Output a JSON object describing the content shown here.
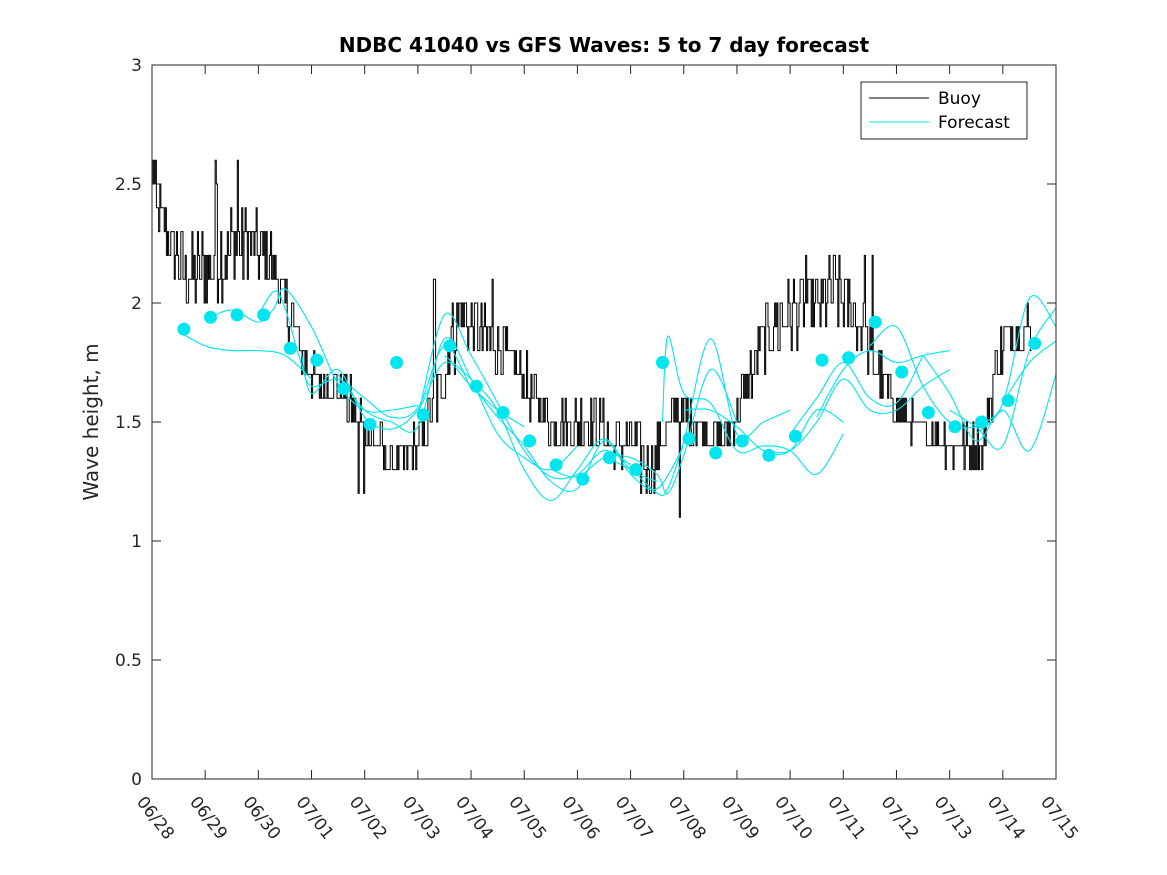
{
  "chart_data": {
    "type": "line",
    "title": "NDBC 41040 vs GFS Waves: 5 to 7 day forecast",
    "ylabel": "Wave height, m",
    "xlabel": "",
    "ylim": [
      0,
      3
    ],
    "xlim": [
      0,
      17
    ],
    "yticks": [
      0,
      0.5,
      1,
      1.5,
      2,
      2.5,
      3
    ],
    "ytick_labels": [
      "0",
      "0.5",
      "1",
      "1.5",
      "2",
      "2.5",
      "3"
    ],
    "xtick_labels": [
      "06/28",
      "06/29",
      "06/30",
      "07/01",
      "07/02",
      "07/03",
      "07/04",
      "07/05",
      "07/06",
      "07/07",
      "07/08",
      "07/09",
      "07/10",
      "07/11",
      "07/12",
      "07/13",
      "07/14",
      "07/15"
    ],
    "legend": {
      "position": "top-right",
      "entries": [
        {
          "label": "Buoy",
          "color": "#000000"
        },
        {
          "label": "Forecast",
          "color": "#00e5ee"
        }
      ]
    },
    "colors": {
      "buoy": "#000000",
      "forecast": "#00e5ee",
      "axes": "#262626"
    },
    "buoy_envelope": {
      "x": [
        0,
        0.3,
        0.6,
        0.8,
        1.2,
        1.6,
        1.9,
        2.2,
        2.5,
        2.9,
        3.2,
        3.5,
        3.8,
        4.1,
        4.4,
        4.7,
        5.0,
        5.2,
        5.4,
        5.6,
        5.8,
        6.0,
        6.3,
        6.6,
        6.9,
        7.2,
        7.5,
        7.8,
        8.1,
        8.4,
        8.7,
        9.0,
        9.3,
        9.6,
        9.9,
        10.2,
        10.5,
        10.8,
        11.1,
        11.4,
        11.7,
        12.0,
        12.3,
        12.6,
        12.9,
        13.2,
        13.5,
        13.8,
        14.1,
        14.4,
        14.7,
        15.0,
        15.3,
        15.6,
        15.9,
        16.2,
        16.5
      ],
      "y": [
        2.45,
        2.25,
        2.15,
        2.1,
        2.2,
        2.25,
        2.25,
        2.2,
        2.0,
        1.75,
        1.65,
        1.65,
        1.55,
        1.45,
        1.35,
        1.35,
        1.4,
        1.5,
        1.65,
        1.8,
        1.95,
        1.9,
        1.85,
        1.8,
        1.7,
        1.6,
        1.5,
        1.5,
        1.5,
        1.5,
        1.4,
        1.4,
        1.3,
        1.45,
        1.55,
        1.5,
        1.45,
        1.45,
        1.6,
        1.8,
        1.9,
        1.95,
        2.0,
        2.0,
        2.05,
        1.95,
        1.8,
        1.65,
        1.55,
        1.45,
        1.45,
        1.4,
        1.4,
        1.4,
        1.75,
        1.9,
        1.9
      ],
      "amplitude": [
        0.15,
        0.12,
        0.15,
        0.18,
        0.2,
        0.2,
        0.15,
        0.12,
        0.12,
        0.1,
        0.1,
        0.08,
        0.1,
        0.1,
        0.08,
        0.08,
        0.1,
        0.1,
        0.15,
        0.15,
        0.12,
        0.12,
        0.12,
        0.1,
        0.1,
        0.1,
        0.1,
        0.12,
        0.12,
        0.1,
        0.1,
        0.12,
        0.15,
        0.1,
        0.08,
        0.1,
        0.1,
        0.1,
        0.1,
        0.12,
        0.15,
        0.15,
        0.12,
        0.15,
        0.15,
        0.12,
        0.1,
        0.08,
        0.08,
        0.08,
        0.08,
        0.08,
        0.08,
        0.1,
        0.12,
        0.1,
        0.1
      ],
      "peaks": [
        {
          "x": 0.02,
          "y": 2.6
        },
        {
          "x": 1.2,
          "y": 2.5
        },
        {
          "x": 1.18,
          "y": 2.6
        },
        {
          "x": 1.6,
          "y": 2.6
        },
        {
          "x": 2.1,
          "y": 2.3
        },
        {
          "x": 3.88,
          "y": 1.2
        },
        {
          "x": 3.98,
          "y": 1.2
        },
        {
          "x": 5.3,
          "y": 2.1
        },
        {
          "x": 6.4,
          "y": 2.1
        },
        {
          "x": 9.92,
          "y": 1.1
        },
        {
          "x": 12.3,
          "y": 2.2
        },
        {
          "x": 13.4,
          "y": 2.2
        },
        {
          "x": 13.55,
          "y": 2.2
        }
      ]
    },
    "forecast_series": [
      {
        "x": [
          0.5,
          1.0,
          1.5,
          2.0,
          2.5,
          3.0
        ],
        "y": [
          1.88,
          1.82,
          1.8,
          1.8,
          1.78,
          1.68
        ]
      },
      {
        "x": [
          1.0,
          1.5,
          2.0,
          2.3,
          2.5,
          3.0,
          3.5,
          4.0,
          4.5,
          5.0
        ],
        "y": [
          1.93,
          1.97,
          1.92,
          1.98,
          2.06,
          1.9,
          1.66,
          1.55,
          1.55,
          1.57
        ]
      },
      {
        "x": [
          2.0,
          2.3,
          2.5,
          2.8,
          3.0,
          3.5,
          4.0,
          4.5,
          5.0,
          5.5,
          6.0
        ],
        "y": [
          1.95,
          2.05,
          1.98,
          1.75,
          1.65,
          1.68,
          1.6,
          1.52,
          1.56,
          1.82,
          1.64
        ]
      },
      {
        "x": [
          2.8,
          3.0,
          3.5,
          4.0,
          4.5,
          5.0,
          5.5,
          6.0,
          6.5,
          7.0
        ],
        "y": [
          1.8,
          1.62,
          1.72,
          1.52,
          1.47,
          1.55,
          1.75,
          1.65,
          1.55,
          1.48
        ]
      },
      {
        "x": [
          3.5,
          4.0,
          4.5,
          5.0,
          5.5,
          6.0,
          6.5,
          7.0,
          7.5,
          8.0
        ],
        "y": [
          1.7,
          1.55,
          1.5,
          1.48,
          1.85,
          1.68,
          1.45,
          1.35,
          1.3,
          1.4
        ]
      },
      {
        "x": [
          5.0,
          5.5,
          6.0,
          6.5,
          7.0,
          7.5,
          8.0,
          8.5,
          9.0
        ],
        "y": [
          1.52,
          1.95,
          1.78,
          1.58,
          1.38,
          1.27,
          1.28,
          1.38,
          1.32
        ]
      },
      {
        "x": [
          5.5,
          6.0,
          6.5,
          7.0,
          7.5,
          8.0,
          8.5,
          9.0,
          9.5
        ],
        "y": [
          1.78,
          1.68,
          1.55,
          1.3,
          1.17,
          1.3,
          1.43,
          1.3,
          1.25
        ]
      },
      {
        "x": [
          6.0,
          6.5,
          7.0,
          7.5,
          8.0,
          8.5,
          9.0,
          9.5,
          10.0
        ],
        "y": [
          1.66,
          1.52,
          1.4,
          1.25,
          1.22,
          1.42,
          1.28,
          1.22,
          1.4
        ]
      },
      {
        "x": [
          7.5,
          8.0,
          8.5,
          9.0,
          9.5,
          9.7,
          10.0,
          10.5,
          11.0
        ],
        "y": [
          1.3,
          1.27,
          1.35,
          1.35,
          1.28,
          1.2,
          1.36,
          1.72,
          1.5
        ]
      },
      {
        "x": [
          8.5,
          9.0,
          9.5,
          9.7,
          10.0,
          10.5,
          11.0,
          11.5,
          12.0
        ],
        "y": [
          1.35,
          1.3,
          1.2,
          1.22,
          1.42,
          1.85,
          1.45,
          1.5,
          1.55
        ]
      },
      {
        "x": [
          9.6,
          9.7,
          10.0,
          10.5,
          11.0,
          11.5,
          12.0,
          12.5,
          13.0
        ],
        "y": [
          1.5,
          1.86,
          1.62,
          1.58,
          1.38,
          1.4,
          1.38,
          1.28,
          1.45
        ]
      },
      {
        "x": [
          10.0,
          10.5,
          11.0,
          11.5,
          12.0,
          12.5,
          13.0
        ],
        "y": [
          1.55,
          1.55,
          1.48,
          1.38,
          1.38,
          1.55,
          1.5
        ]
      },
      {
        "x": [
          11.5,
          12.0,
          12.5,
          13.0,
          13.5,
          14.0,
          14.5,
          15.0
        ],
        "y": [
          1.38,
          1.38,
          1.5,
          1.68,
          1.55,
          1.55,
          1.65,
          1.72
        ]
      },
      {
        "x": [
          12.0,
          12.5,
          13.0,
          13.5,
          14.0,
          14.5
        ],
        "y": [
          1.45,
          1.6,
          1.75,
          1.6,
          1.58,
          1.78
        ]
      },
      {
        "x": [
          12.5,
          13.0,
          13.5,
          14.0,
          14.5,
          15.0
        ],
        "y": [
          1.52,
          1.72,
          1.8,
          1.75,
          1.78,
          1.8
        ]
      },
      {
        "x": [
          13.5,
          14.0,
          14.5,
          15.0,
          15.5,
          16.0
        ],
        "y": [
          1.82,
          1.9,
          1.65,
          1.5,
          1.48,
          1.55
        ]
      },
      {
        "x": [
          14.5,
          15.0,
          15.5,
          16.0,
          16.5,
          17.0
        ],
        "y": [
          1.78,
          1.62,
          1.42,
          1.55,
          1.38,
          1.7
        ]
      },
      {
        "x": [
          15.0,
          15.5,
          16.0,
          16.5,
          17.0
        ],
        "y": [
          1.55,
          1.48,
          1.4,
          1.8,
          1.98
        ]
      },
      {
        "x": [
          15.5,
          16.0,
          16.5,
          17.0
        ],
        "y": [
          1.45,
          1.58,
          2.02,
          1.9
        ]
      },
      {
        "x": [
          16.0,
          16.5,
          17.0
        ],
        "y": [
          1.58,
          1.75,
          1.84
        ]
      }
    ],
    "forecast_markers": {
      "x": [
        0.6,
        1.1,
        1.6,
        2.1,
        2.6,
        3.1,
        3.6,
        4.1,
        4.6,
        5.1,
        5.6,
        6.1,
        6.6,
        7.1,
        7.6,
        8.1,
        8.6,
        9.1,
        9.6,
        10.1,
        10.6,
        11.1,
        11.6,
        12.1,
        12.6,
        13.1,
        13.6,
        14.1,
        14.6,
        15.1,
        15.6,
        16.1,
        16.6
      ],
      "y": [
        1.89,
        1.94,
        1.95,
        1.95,
        1.81,
        1.76,
        1.64,
        1.49,
        1.75,
        1.53,
        1.82,
        1.65,
        1.54,
        1.42,
        1.32,
        1.26,
        1.35,
        1.3,
        1.75,
        1.43,
        1.37,
        1.42,
        1.36,
        1.44,
        1.76,
        1.77,
        1.92,
        1.71,
        1.54,
        1.48,
        1.5,
        1.59,
        1.83
      ]
    }
  }
}
